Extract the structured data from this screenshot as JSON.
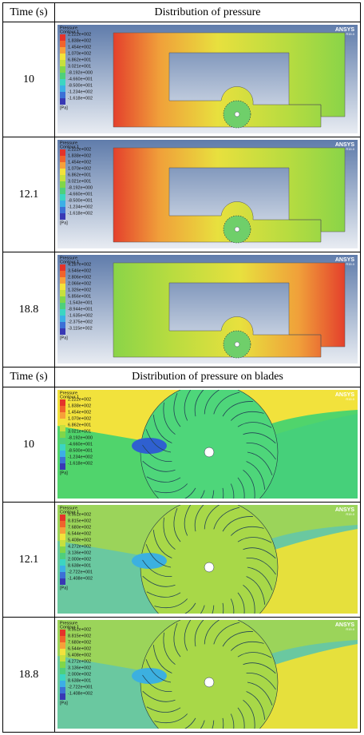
{
  "sections": [
    {
      "header": {
        "time": "Time (s)",
        "title": "Distribution of pressure"
      },
      "rows": [
        {
          "time": "10",
          "legend": {
            "title": [
              "Pressure",
              "Contour 1"
            ],
            "levels": [
              "2.222e+002",
              "1.838e+002",
              "1.454e+002",
              "1.070e+002",
              "6.862e+001",
              "3.021e+001",
              "-8.192e+000",
              "-4.660e+001",
              "-8.500e+001",
              "-1.234e+002",
              "-1.618e+002"
            ],
            "unit": "[Pa]",
            "brand": "ANSYS",
            "version": "R15.0"
          }
        },
        {
          "time": "12.1",
          "legend": {
            "title": [
              "Pressure",
              "Contour 1"
            ],
            "levels": [
              "2.222e+002",
              "1.838e+002",
              "1.454e+002",
              "1.070e+002",
              "6.862e+001",
              "3.021e+001",
              "-8.192e+000",
              "-4.660e+001",
              "-8.500e+001",
              "-1.234e+002",
              "-1.618e+002"
            ],
            "unit": "[Pa]",
            "brand": "ANSYS",
            "version": "R15.0"
          }
        },
        {
          "time": "18.8",
          "legend": {
            "title": [
              "Pressure",
              "Contour 1"
            ],
            "levels": [
              "4.287e+002",
              "3.546e+002",
              "2.806e+002",
              "2.066e+002",
              "1.326e+002",
              "5.856e+001",
              "-1.543e+001",
              "-8.944e+001",
              "-1.635e+002",
              "-2.375e+002",
              "-3.115e+002"
            ],
            "unit": "[Pa]",
            "brand": "ANSYS",
            "version": "R15.0"
          }
        }
      ]
    },
    {
      "header": {
        "time": "Time (s)",
        "title": "Distribution of pressure on blades"
      },
      "rows": [
        {
          "time": "10",
          "legend": {
            "title": [
              "Pressure",
              "Contour 1"
            ],
            "levels": [
              "2.222e+002",
              "1.838e+002",
              "1.454e+002",
              "1.070e+002",
              "6.862e+001",
              "3.021e+001",
              "-8.192e+000",
              "-4.660e+001",
              "-8.500e+001",
              "-1.234e+002",
              "-1.618e+002"
            ],
            "unit": "[Pa]",
            "brand": "ANSYS",
            "version": "R15.0"
          }
        },
        {
          "time": "12.1",
          "legend": {
            "title": [
              "Pressure",
              "Contour 1"
            ],
            "levels": [
              "9.951e+002",
              "8.815e+002",
              "7.680e+002",
              "6.544e+002",
              "5.408e+002",
              "4.272e+002",
              "3.136e+002",
              "2.000e+002",
              "8.638e+001",
              "-2.722e+001",
              "-1.408e+002"
            ],
            "unit": "[Pa]",
            "brand": "ANSYS",
            "version": "R15.0"
          }
        },
        {
          "time": "18.8",
          "legend": {
            "title": [
              "Pressure",
              "Contour 1"
            ],
            "levels": [
              "9.951e+002",
              "8.815e+002",
              "7.680e+002",
              "6.544e+002",
              "5.408e+002",
              "4.272e+002",
              "3.136e+002",
              "2.000e+002",
              "8.638e+001",
              "-2.722e+001",
              "-1.408e+002"
            ],
            "unit": "[Pa]",
            "brand": "ANSYS",
            "version": "R15.0"
          }
        }
      ]
    }
  ]
}
